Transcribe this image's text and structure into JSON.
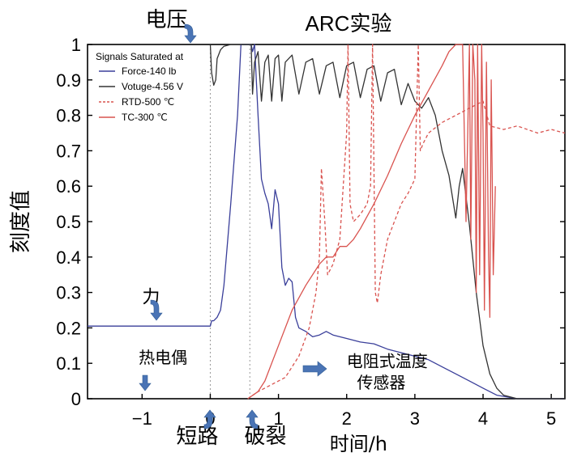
{
  "chart_data": {
    "type": "line",
    "title": "ARC实验",
    "xlabel": "时间/h",
    "ylabel": "刻度值",
    "xlim": [
      -1.8,
      5.2
    ],
    "ylim": [
      0,
      1
    ],
    "xticks": [
      -1,
      0,
      1,
      2,
      3,
      4,
      5
    ],
    "xtick_labels": [
      "−1",
      "0",
      "1",
      "2",
      "3",
      "4",
      "5"
    ],
    "yticks": [
      0,
      0.1,
      0.2,
      0.3,
      0.4,
      0.5,
      0.6,
      0.7,
      0.8,
      0.9,
      1
    ],
    "ytick_labels": [
      "0",
      "0.1",
      "0.2",
      "0.3",
      "0.4",
      "0.5",
      "0.6",
      "0.7",
      "0.8",
      "0.9",
      "1"
    ],
    "grid": false,
    "legend_position": "top-left",
    "legend_title": "Signals Saturated at",
    "series": [
      {
        "name": "Force-140 lb",
        "color": "#3a3f9a",
        "style": "solid",
        "x": [
          -1.8,
          0,
          0.02,
          0.05,
          0.1,
          0.15,
          0.2,
          0.3,
          0.4,
          0.45,
          0.5,
          0.55,
          0.6,
          0.62,
          0.65,
          0.7,
          0.75,
          0.8,
          0.85,
          0.9,
          0.95,
          1.0,
          1.05,
          1.1,
          1.15,
          1.2,
          1.25,
          1.3,
          1.4,
          1.5,
          1.6,
          1.7,
          1.8,
          2.0,
          2.2,
          2.4,
          2.6,
          2.8,
          3.0,
          3.2,
          3.4,
          3.6,
          3.8,
          4.0,
          4.2,
          4.5,
          4.8,
          5.2
        ],
        "y": [
          0.205,
          0.205,
          0.22,
          0.22,
          0.23,
          0.25,
          0.32,
          0.55,
          0.8,
          1.0,
          1.0,
          1.0,
          1.0,
          0.98,
          1.0,
          0.8,
          0.62,
          0.58,
          0.55,
          0.48,
          0.59,
          0.55,
          0.37,
          0.32,
          0.34,
          0.33,
          0.23,
          0.2,
          0.19,
          0.175,
          0.18,
          0.19,
          0.18,
          0.17,
          0.16,
          0.155,
          0.14,
          0.13,
          0.12,
          0.11,
          0.09,
          0.07,
          0.05,
          0.03,
          0.01,
          0.0,
          0.0,
          0.0
        ]
      },
      {
        "name": "Votuge-4.56 V",
        "color": "#333333",
        "style": "solid",
        "x": [
          0.0,
          0.02,
          0.05,
          0.08,
          0.1,
          0.15,
          0.2,
          0.3,
          0.4,
          0.5,
          0.6,
          0.62,
          0.65,
          0.7,
          0.75,
          0.8,
          0.85,
          0.9,
          0.95,
          1.0,
          1.05,
          1.1,
          1.2,
          1.3,
          1.4,
          1.5,
          1.6,
          1.7,
          1.8,
          1.9,
          2.0,
          2.1,
          2.2,
          2.3,
          2.4,
          2.5,
          2.6,
          2.7,
          2.8,
          2.9,
          3.0,
          3.1,
          3.2,
          3.3,
          3.4,
          3.5,
          3.6,
          3.65,
          3.7,
          3.8,
          3.9,
          4.0,
          4.1,
          4.2,
          4.3,
          4.5,
          4.8,
          5.2
        ],
        "y": [
          1.0,
          0.92,
          0.885,
          0.9,
          0.96,
          0.985,
          0.995,
          1.0,
          1.0,
          1.0,
          1.0,
          0.86,
          0.95,
          0.98,
          0.84,
          0.95,
          0.97,
          0.84,
          0.96,
          0.97,
          0.84,
          0.95,
          0.97,
          0.86,
          0.95,
          0.96,
          0.86,
          0.94,
          0.95,
          0.85,
          0.94,
          0.95,
          0.85,
          0.93,
          0.94,
          0.84,
          0.92,
          0.93,
          0.83,
          0.89,
          0.84,
          0.82,
          0.85,
          0.8,
          0.7,
          0.63,
          0.51,
          0.6,
          0.65,
          0.49,
          0.3,
          0.15,
          0.07,
          0.03,
          0.01,
          0.0,
          0.0,
          0.0
        ]
      },
      {
        "name": "RTD-500 ℃",
        "color": "#d9534f",
        "style": "dashed",
        "x": [
          0.55,
          0.7,
          0.9,
          1.1,
          1.3,
          1.45,
          1.55,
          1.6,
          1.63,
          1.68,
          1.72,
          1.8,
          1.9,
          1.95,
          2.0,
          2.02,
          2.05,
          2.1,
          2.2,
          2.3,
          2.35,
          2.38,
          2.42,
          2.45,
          2.5,
          2.6,
          2.7,
          2.8,
          2.9,
          3.0,
          3.05,
          3.08,
          3.12,
          3.2,
          3.4,
          3.6,
          3.8,
          4.0,
          4.1,
          4.3,
          4.5,
          4.8,
          5.0,
          5.2
        ],
        "y": [
          0.0,
          0.02,
          0.04,
          0.06,
          0.12,
          0.2,
          0.3,
          0.4,
          0.65,
          0.5,
          0.35,
          0.38,
          0.45,
          0.6,
          0.75,
          1.0,
          0.55,
          0.5,
          0.52,
          0.55,
          0.6,
          1.0,
          0.3,
          0.27,
          0.35,
          0.45,
          0.5,
          0.55,
          0.58,
          0.62,
          1.0,
          0.7,
          0.72,
          0.75,
          0.78,
          0.8,
          0.82,
          0.84,
          0.77,
          0.76,
          0.77,
          0.75,
          0.76,
          0.75
        ]
      },
      {
        "name": "TC-300 ℃",
        "color": "#d9534f",
        "style": "solid",
        "x": [
          0.55,
          0.7,
          0.8,
          1.0,
          1.2,
          1.4,
          1.6,
          1.7,
          1.8,
          1.9,
          2.0,
          2.1,
          2.2,
          2.4,
          2.6,
          2.8,
          3.0,
          3.2,
          3.4,
          3.5,
          3.6,
          3.7,
          3.75,
          3.8,
          3.82,
          3.85,
          3.88,
          3.9,
          3.92,
          3.95,
          3.98,
          4.0,
          4.02,
          4.05,
          4.08,
          4.1,
          4.12,
          4.15,
          4.18
        ],
        "y": [
          0.0,
          0.02,
          0.05,
          0.15,
          0.25,
          0.32,
          0.38,
          0.4,
          0.4,
          0.43,
          0.43,
          0.45,
          0.48,
          0.55,
          0.63,
          0.72,
          0.8,
          0.87,
          0.94,
          0.98,
          1.0,
          1.0,
          0.5,
          1.0,
          0.45,
          1.0,
          0.9,
          0.3,
          1.0,
          0.35,
          1.0,
          0.75,
          0.25,
          0.95,
          0.4,
          0.23,
          0.9,
          0.35,
          0.6
        ]
      }
    ],
    "annotations": [
      {
        "text": "电压",
        "x": -0.95,
        "y": 1.05
      },
      {
        "text": "力",
        "x": -1.0,
        "y": 0.27
      },
      {
        "text": "热电偶",
        "x": -1.05,
        "y": 0.1
      },
      {
        "text": "电阻式温度",
        "x": 2.0,
        "y": 0.09
      },
      {
        "text": "传感器",
        "x": 2.15,
        "y": 0.03
      },
      {
        "text": "短路",
        "x": -0.5,
        "y": -0.125
      },
      {
        "text": "破裂",
        "x": 0.5,
        "y": -0.125
      }
    ],
    "markers": [
      {
        "name": "short-circuit",
        "x": 0.0
      },
      {
        "name": "rupture",
        "x": 0.58
      }
    ]
  }
}
